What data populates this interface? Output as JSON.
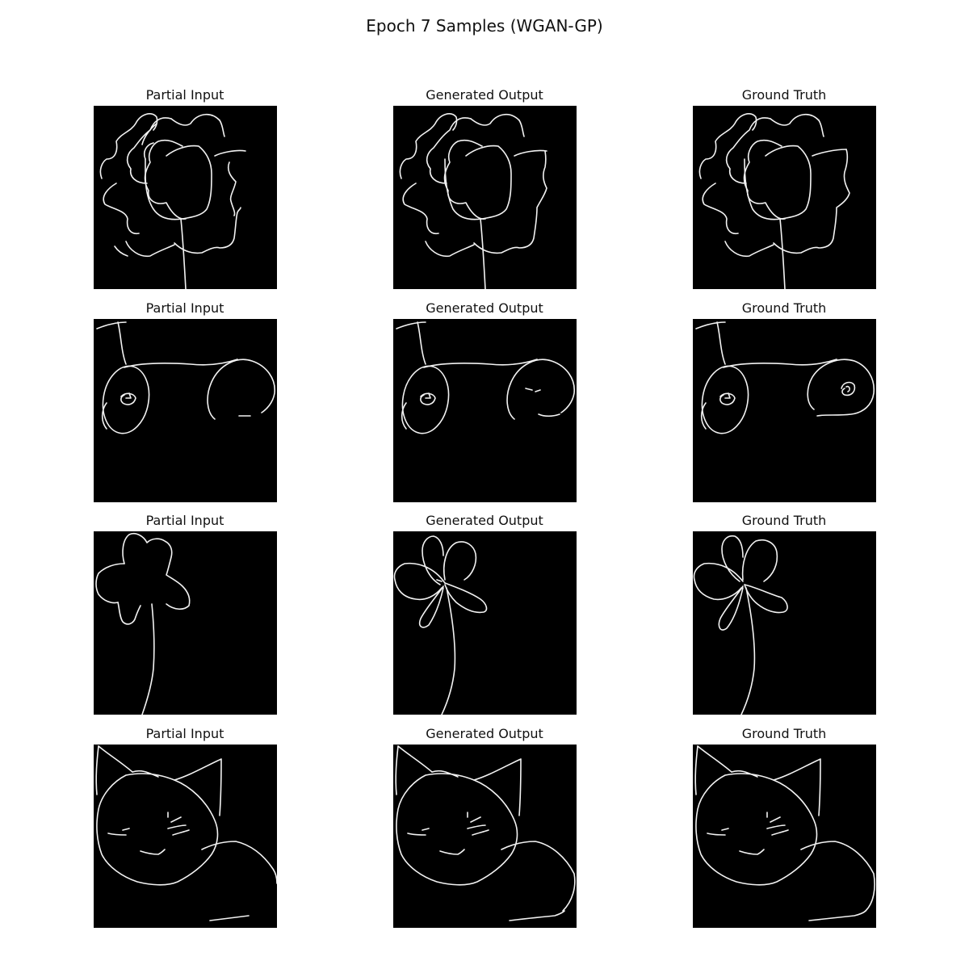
{
  "title": "Epoch 7 Samples (WGAN-GP)",
  "columns": [
    "Partial Input",
    "Generated Output",
    "Ground Truth"
  ],
  "rows": [
    {
      "sketch": "flower"
    },
    {
      "sketch": "bicycle-wheels"
    },
    {
      "sketch": "flower-stem"
    },
    {
      "sketch": "cat"
    }
  ],
  "colors": {
    "panel_background": "#000000",
    "stroke": "#f2f2f2",
    "page_background": "#ffffff"
  }
}
